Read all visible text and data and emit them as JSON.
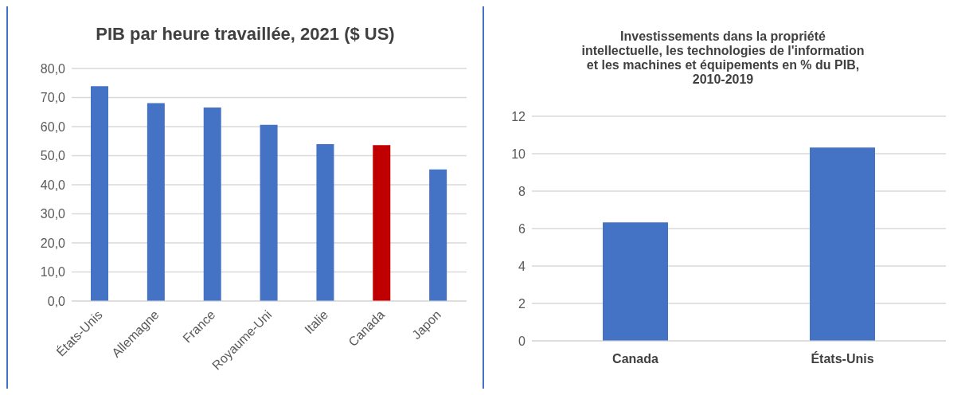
{
  "chart_data": [
    {
      "type": "bar",
      "title": "PIB par heure travaillée, 2021 ($ US)",
      "categories": [
        "États-Unis",
        "Allemagne",
        "France",
        "Royaume-Uni",
        "Italie",
        "Canada",
        "Japon"
      ],
      "values": [
        73.9,
        68.1,
        66.6,
        60.6,
        54.0,
        53.6,
        45.3
      ],
      "colors": [
        "#4472c4",
        "#4472c4",
        "#4472c4",
        "#4472c4",
        "#4472c4",
        "#c00000",
        "#4472c4"
      ],
      "ylim": [
        0,
        80
      ],
      "yticks": [
        {
          "value": 0,
          "label": "0,0"
        },
        {
          "value": 10,
          "label": "10,0"
        },
        {
          "value": 20,
          "label": "20,0"
        },
        {
          "value": 30,
          "label": "30,0"
        },
        {
          "value": 40,
          "label": "40,0"
        },
        {
          "value": 50,
          "label": "50,0"
        },
        {
          "value": 60,
          "label": "60,0"
        },
        {
          "value": 70,
          "label": "70,0"
        },
        {
          "value": 80,
          "label": "80,0"
        }
      ],
      "grid": "y"
    },
    {
      "type": "bar",
      "title": "Investissements dans la propriété intellectuelle, les technologies de l'information et les machines et équipements en % du PIB, 2010-2019",
      "categories": [
        "Canada",
        "États-Unis"
      ],
      "values": [
        6.33,
        10.33
      ],
      "colors": [
        "#4472c4",
        "#4472c4"
      ],
      "ylim": [
        0,
        12
      ],
      "yticks": [
        0,
        2,
        4,
        6,
        8,
        10,
        12
      ],
      "grid": "y"
    }
  ]
}
